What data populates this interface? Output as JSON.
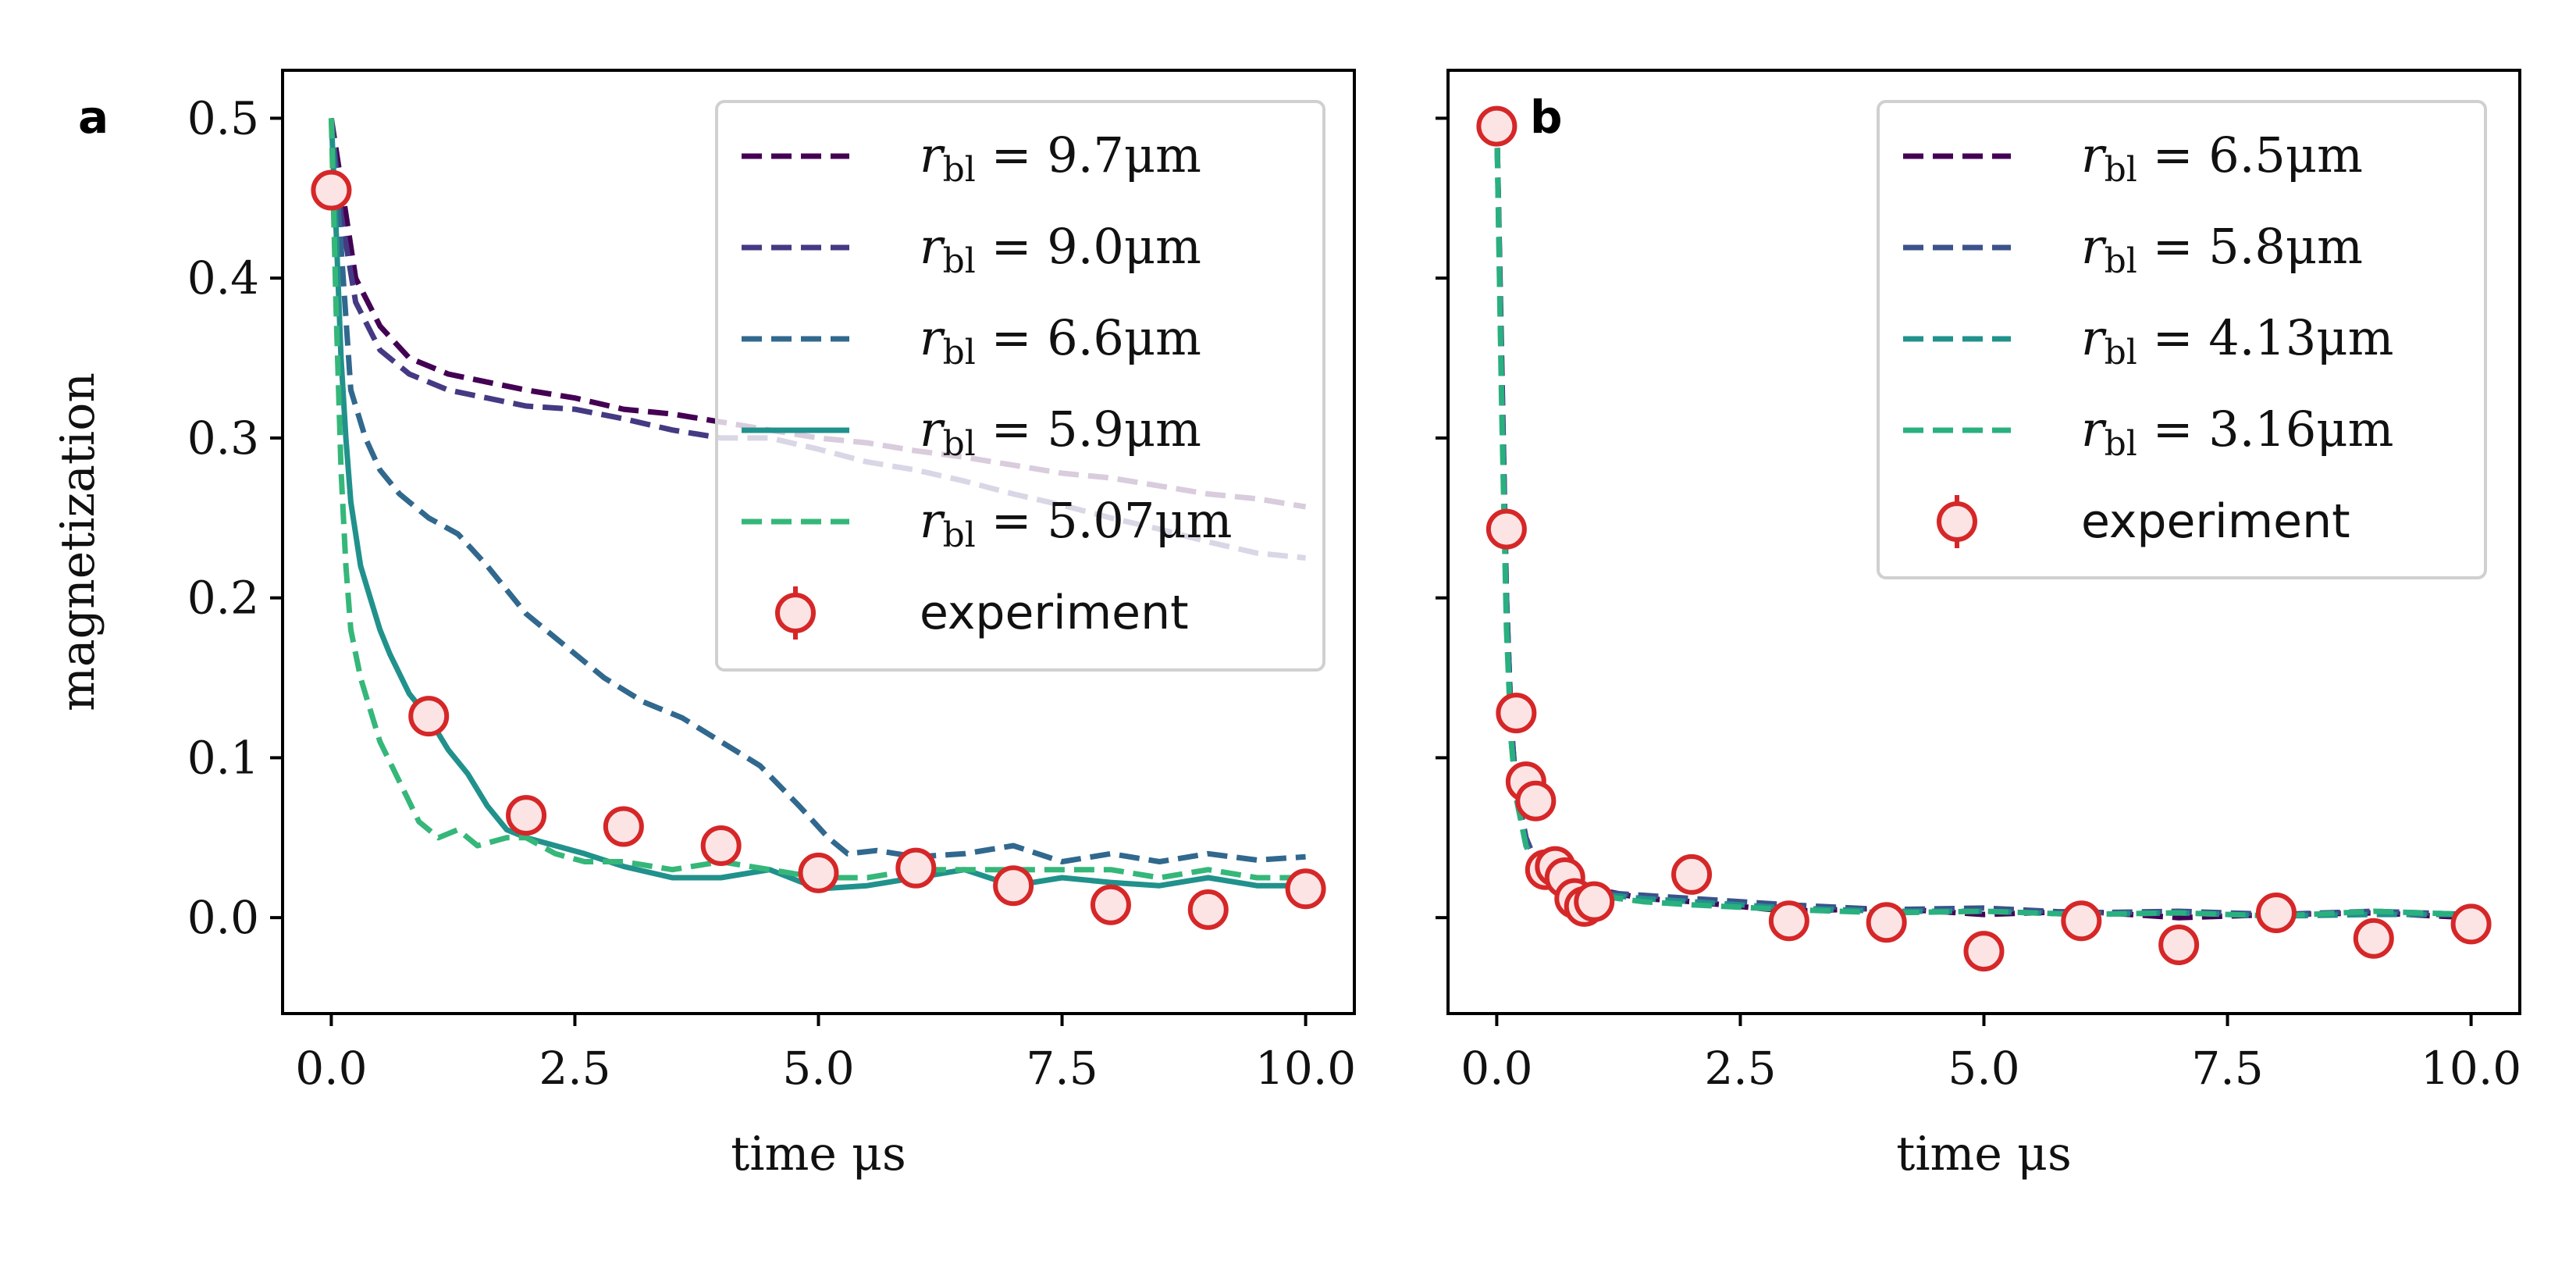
{
  "chart_data": [
    {
      "type": "line",
      "panel_label": "a",
      "xlabel": "time μs",
      "ylabel": "magnetization",
      "xlim": [
        -0.5,
        10.5
      ],
      "ylim": [
        -0.06,
        0.53
      ],
      "xticks": [
        0,
        2.5,
        5,
        7.5,
        10
      ],
      "xtick_labels": [
        "0.0",
        "2.5",
        "5.0",
        "7.5",
        "10.0"
      ],
      "yticks": [
        0,
        0.1,
        0.2,
        0.3,
        0.4,
        0.5
      ],
      "ytick_labels": [
        "0.0",
        "0.1",
        "0.2",
        "0.3",
        "0.4",
        "0.5"
      ],
      "legend_position": "top-right",
      "series": [
        {
          "name": "r_bl = 9.7μm",
          "label_value": "9.7μm",
          "color": "#440154",
          "dash": "dashed",
          "x": [
            0,
            0.1,
            0.25,
            0.5,
            0.8,
            1.2,
            1.6,
            2.0,
            2.5,
            3.0,
            3.5,
            4.0,
            4.5,
            5.0,
            5.5,
            6.0,
            6.5,
            7.0,
            7.5,
            8.0,
            8.5,
            9.0,
            9.5,
            10.0
          ],
          "y": [
            0.5,
            0.46,
            0.4,
            0.37,
            0.35,
            0.34,
            0.335,
            0.33,
            0.325,
            0.318,
            0.315,
            0.31,
            0.305,
            0.3,
            0.297,
            0.292,
            0.288,
            0.283,
            0.278,
            0.275,
            0.27,
            0.265,
            0.262,
            0.257
          ]
        },
        {
          "name": "r_bl = 9.0μm",
          "label_value": "9.0μm",
          "color": "#443a83",
          "dash": "dashed",
          "x": [
            0,
            0.1,
            0.25,
            0.5,
            0.8,
            1.2,
            1.6,
            2.0,
            2.5,
            3.0,
            3.5,
            4.0,
            4.5,
            5.0,
            5.5,
            6.0,
            6.5,
            7.0,
            7.5,
            8.0,
            8.5,
            9.0,
            9.5,
            10.0
          ],
          "y": [
            0.5,
            0.44,
            0.385,
            0.355,
            0.34,
            0.33,
            0.325,
            0.32,
            0.318,
            0.312,
            0.305,
            0.3,
            0.3,
            0.293,
            0.285,
            0.28,
            0.273,
            0.265,
            0.258,
            0.25,
            0.243,
            0.235,
            0.228,
            0.225
          ]
        },
        {
          "name": "r_bl = 6.6μm",
          "label_value": "6.6μm",
          "color": "#31688e",
          "dash": "dashed",
          "x": [
            0,
            0.1,
            0.2,
            0.35,
            0.5,
            0.7,
            1.0,
            1.3,
            1.6,
            2.0,
            2.4,
            2.8,
            3.2,
            3.6,
            4.0,
            4.4,
            4.8,
            5.1,
            5.3,
            5.6,
            6.0,
            6.5,
            7.0,
            7.5,
            8.0,
            8.5,
            9.0,
            9.5,
            10.0
          ],
          "y": [
            0.5,
            0.42,
            0.33,
            0.3,
            0.28,
            0.265,
            0.25,
            0.24,
            0.22,
            0.19,
            0.17,
            0.15,
            0.135,
            0.125,
            0.11,
            0.095,
            0.07,
            0.05,
            0.04,
            0.042,
            0.038,
            0.04,
            0.045,
            0.035,
            0.04,
            0.035,
            0.04,
            0.036,
            0.038
          ]
        },
        {
          "name": "r_bl = 5.9μm",
          "label_value": "5.9μm",
          "color": "#21918c",
          "dash": "solid",
          "x": [
            0,
            0.05,
            0.1,
            0.15,
            0.2,
            0.3,
            0.4,
            0.5,
            0.6,
            0.8,
            1.0,
            1.2,
            1.4,
            1.6,
            1.8,
            2.0,
            2.3,
            2.6,
            3.0,
            3.5,
            4.0,
            4.5,
            5.0,
            5.5,
            6.0,
            6.5,
            7.0,
            7.5,
            8.0,
            8.5,
            9.0,
            9.5,
            10.0
          ],
          "y": [
            0.5,
            0.43,
            0.35,
            0.3,
            0.26,
            0.22,
            0.2,
            0.18,
            0.165,
            0.14,
            0.125,
            0.105,
            0.09,
            0.07,
            0.055,
            0.05,
            0.045,
            0.04,
            0.032,
            0.025,
            0.025,
            0.03,
            0.018,
            0.02,
            0.025,
            0.03,
            0.02,
            0.025,
            0.022,
            0.02,
            0.025,
            0.02,
            0.02
          ]
        },
        {
          "name": "r_bl = 5.07μm",
          "label_value": "5.07μm",
          "color": "#35b779",
          "dash": "dashed",
          "x": [
            0,
            0.05,
            0.1,
            0.15,
            0.2,
            0.3,
            0.4,
            0.5,
            0.7,
            0.9,
            1.1,
            1.3,
            1.5,
            1.8,
            2.0,
            2.3,
            2.6,
            3.0,
            3.5,
            4.0,
            4.5,
            5.0,
            5.5,
            6.0,
            6.5,
            7.0,
            7.5,
            8.0,
            8.5,
            9.0,
            9.5,
            10.0
          ],
          "y": [
            0.5,
            0.38,
            0.28,
            0.22,
            0.18,
            0.15,
            0.13,
            0.11,
            0.085,
            0.06,
            0.05,
            0.055,
            0.045,
            0.05,
            0.05,
            0.04,
            0.035,
            0.035,
            0.03,
            0.035,
            0.03,
            0.025,
            0.025,
            0.03,
            0.03,
            0.03,
            0.03,
            0.03,
            0.025,
            0.03,
            0.025,
            0.025
          ]
        }
      ],
      "experiment": {
        "name": "experiment",
        "color": "#d62728",
        "fill": "#fde4e4",
        "x": [
          0,
          1,
          2,
          3,
          4,
          5,
          6,
          7,
          8,
          9,
          10
        ],
        "y": [
          0.455,
          0.126,
          0.064,
          0.057,
          0.045,
          0.028,
          0.031,
          0.02,
          0.008,
          0.005,
          0.018
        ]
      }
    },
    {
      "type": "line",
      "panel_label": "b",
      "xlabel": "time μs",
      "ylabel": "",
      "xlim": [
        -0.5,
        10.5
      ],
      "ylim": [
        -0.06,
        0.53
      ],
      "xticks": [
        0,
        2.5,
        5,
        7.5,
        10
      ],
      "xtick_labels": [
        "0.0",
        "2.5",
        "5.0",
        "7.5",
        "10.0"
      ],
      "yticks": [
        0,
        0.1,
        0.2,
        0.3,
        0.4,
        0.5
      ],
      "ytick_labels": [],
      "legend_position": "top-right",
      "series": [
        {
          "name": "r_bl = 6.5μm",
          "label_value": "6.5μm",
          "color": "#440154",
          "dash": "dashed",
          "x": [
            0,
            0.05,
            0.1,
            0.15,
            0.2,
            0.3,
            0.4,
            0.5,
            0.7,
            1.0,
            1.5,
            2.0,
            3.0,
            4.0,
            5.0,
            6.0,
            7.0,
            8.0,
            9.0,
            10.0
          ],
          "y": [
            0.5,
            0.35,
            0.2,
            0.12,
            0.08,
            0.05,
            0.035,
            0.028,
            0.02,
            0.018,
            0.012,
            0.01,
            0.004,
            0.006,
            0.002,
            0.004,
            0.0,
            0.002,
            0.003,
            0.0
          ]
        },
        {
          "name": "r_bl = 5.8μm",
          "label_value": "5.8μm",
          "color": "#3b528b",
          "dash": "dashed",
          "x": [
            0,
            0.05,
            0.1,
            0.15,
            0.2,
            0.3,
            0.4,
            0.5,
            0.7,
            1.0,
            1.5,
            2.0,
            3.0,
            4.0,
            5.0,
            6.0,
            7.0,
            8.0,
            9.0,
            10.0
          ],
          "y": [
            0.5,
            0.34,
            0.2,
            0.12,
            0.08,
            0.05,
            0.035,
            0.025,
            0.02,
            0.016,
            0.014,
            0.012,
            0.008,
            0.005,
            0.006,
            0.003,
            0.004,
            0.002,
            0.004,
            0.002
          ]
        },
        {
          "name": "r_bl = 4.13μm",
          "label_value": "4.13μm",
          "color": "#21918c",
          "dash": "dashed",
          "x": [
            0,
            0.05,
            0.1,
            0.15,
            0.2,
            0.3,
            0.4,
            0.5,
            0.7,
            1.0,
            1.5,
            2.0,
            3.0,
            4.0,
            5.0,
            6.0,
            7.0,
            8.0,
            9.0,
            10.0
          ],
          "y": [
            0.5,
            0.33,
            0.19,
            0.11,
            0.075,
            0.045,
            0.032,
            0.025,
            0.018,
            0.015,
            0.012,
            0.01,
            0.006,
            0.004,
            0.004,
            0.002,
            0.003,
            0.001,
            0.002,
            0.002
          ]
        },
        {
          "name": "r_bl = 3.16μm",
          "label_value": "3.16μm",
          "color": "#2ab07f",
          "dash": "dashed",
          "x": [
            0,
            0.05,
            0.1,
            0.15,
            0.2,
            0.3,
            0.4,
            0.5,
            0.7,
            1.0,
            1.5,
            2.0,
            3.0,
            4.0,
            5.0,
            6.0,
            7.0,
            8.0,
            9.0,
            10.0
          ],
          "y": [
            0.5,
            0.32,
            0.18,
            0.11,
            0.075,
            0.045,
            0.03,
            0.022,
            0.016,
            0.014,
            0.01,
            0.008,
            0.005,
            0.003,
            0.004,
            0.002,
            0.003,
            0.001,
            0.004,
            0.002
          ]
        }
      ],
      "experiment": {
        "name": "experiment",
        "color": "#d62728",
        "fill": "#fde4e4",
        "x": [
          0,
          0.1,
          0.2,
          0.3,
          0.4,
          0.5,
          0.6,
          0.7,
          0.8,
          0.9,
          1.0,
          2,
          3,
          4,
          5,
          6,
          7,
          8,
          9,
          10
        ],
        "y": [
          0.495,
          0.243,
          0.128,
          0.085,
          0.073,
          0.03,
          0.032,
          0.025,
          0.012,
          0.007,
          0.01,
          0.027,
          -0.002,
          -0.003,
          -0.021,
          -0.002,
          -0.017,
          0.003,
          -0.013,
          -0.004
        ]
      }
    }
  ]
}
